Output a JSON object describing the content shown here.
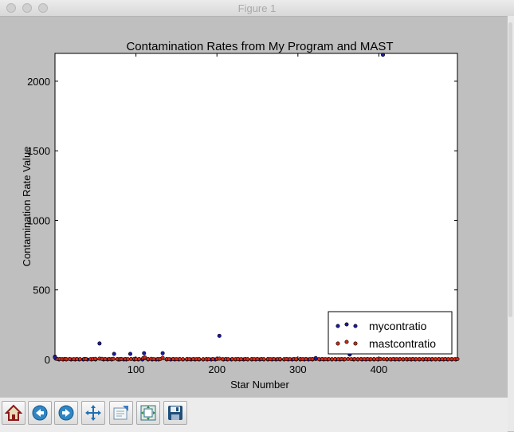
{
  "window": {
    "title": "Figure 1"
  },
  "toolbar": {
    "buttons": [
      {
        "name": "home-button",
        "icon": "home-icon"
      },
      {
        "name": "back-button",
        "icon": "back-arrow-icon"
      },
      {
        "name": "forward-button",
        "icon": "forward-arrow-icon"
      },
      {
        "name": "pan-button",
        "icon": "move-icon"
      },
      {
        "name": "zoom-button",
        "icon": "zoom-rect-icon"
      },
      {
        "name": "subplots-button",
        "icon": "subplots-icon"
      },
      {
        "name": "save-button",
        "icon": "save-icon"
      }
    ]
  },
  "chart_data": {
    "type": "scatter",
    "title": "Contamination Rates from My Program and MAST",
    "xlabel": "Star Number",
    "ylabel": "Contamination Rate Value",
    "xlim": [
      0,
      497
    ],
    "ylim": [
      0,
      2200
    ],
    "xticks": [
      100,
      200,
      300,
      400
    ],
    "yticks": [
      0,
      500,
      1000,
      1500,
      2000
    ],
    "legend_position": "lower-right",
    "colors": {
      "mycontratio": "#1a1aa6",
      "mastcontratio": "#cc2a18"
    },
    "series": [
      {
        "name": "mycontratio",
        "x": [
          0,
          55,
          73,
          93,
          110,
          133,
          203,
          322,
          364,
          405
        ],
        "y": [
          15,
          115,
          40,
          40,
          45,
          45,
          170,
          10,
          35,
          2190
        ],
        "baseline_x": [
          5,
          10,
          14,
          20,
          25,
          30,
          35,
          40,
          45,
          50,
          60,
          65,
          70,
          78,
          80,
          85,
          88,
          98,
          103,
          108,
          115,
          120,
          125,
          128,
          138,
          143,
          148,
          153,
          158,
          163,
          168,
          173,
          178,
          183,
          188,
          193,
          198,
          208,
          213,
          218,
          223,
          228,
          233,
          238,
          243,
          248,
          253,
          258,
          263,
          268,
          273,
          278,
          283,
          288,
          293,
          298,
          303,
          308,
          313,
          318,
          327,
          332,
          337,
          342,
          347,
          352,
          357,
          369,
          374,
          379,
          384,
          389,
          394,
          399,
          410,
          415,
          420,
          425,
          430,
          435,
          440,
          445,
          450,
          455,
          460,
          465,
          470,
          475,
          480,
          485,
          490,
          495
        ],
        "baseline_y": 0
      },
      {
        "name": "mastcontratio",
        "x": [
          0,
          1,
          3,
          6,
          9,
          12,
          14,
          18,
          23,
          27,
          31,
          36,
          38,
          44,
          47,
          50,
          55,
          58,
          62,
          67,
          70,
          72,
          77,
          80,
          82,
          87,
          90,
          94,
          98,
          100,
          104,
          109,
          111,
          115,
          119,
          122,
          127,
          130,
          133,
          138,
          141,
          146,
          150,
          154,
          158,
          163,
          166,
          171,
          175,
          178,
          183,
          187,
          190,
          195,
          200,
          203,
          207,
          211,
          214,
          219,
          223,
          226,
          230,
          235,
          238,
          243,
          246,
          250,
          255,
          258,
          263,
          266,
          270,
          275,
          278,
          283,
          286,
          290,
          295,
          298,
          303,
          306,
          310,
          315,
          318,
          322,
          326,
          330,
          334,
          338,
          342,
          346,
          350,
          354,
          358,
          362,
          366,
          370,
          374,
          378,
          382,
          386,
          390,
          394,
          398,
          402,
          406,
          410,
          414,
          418,
          422,
          426,
          430,
          434,
          438,
          442,
          446,
          450,
          454,
          458,
          462,
          466,
          470,
          474,
          478,
          482,
          486,
          490,
          494,
          497
        ],
        "y": [
          20,
          6,
          3,
          3,
          2,
          3,
          2,
          3,
          2,
          3,
          2,
          3,
          3,
          2,
          3,
          4,
          6,
          4,
          3,
          3,
          2,
          4,
          3,
          2,
          3,
          3,
          2,
          3,
          4,
          2,
          3,
          10,
          15,
          3,
          4,
          2,
          3,
          3,
          12,
          3,
          2,
          3,
          2,
          3,
          2,
          3,
          2,
          3,
          2,
          3,
          2,
          3,
          2,
          3,
          3,
          6,
          2,
          3,
          2,
          3,
          2,
          3,
          2,
          3,
          2,
          3,
          2,
          3,
          3,
          2,
          3,
          2,
          3,
          2,
          3,
          2,
          3,
          2,
          3,
          2,
          3,
          2,
          3,
          2,
          3,
          3,
          2,
          3,
          2,
          3,
          2,
          3,
          2,
          3,
          2,
          3,
          2,
          3,
          2,
          3,
          2,
          3,
          2,
          3,
          2,
          3,
          2,
          3,
          2,
          3,
          2,
          3,
          2,
          3,
          2,
          3,
          2,
          3,
          2,
          3,
          2,
          3,
          2,
          3,
          2,
          3,
          2,
          3,
          2,
          3
        ]
      }
    ]
  }
}
